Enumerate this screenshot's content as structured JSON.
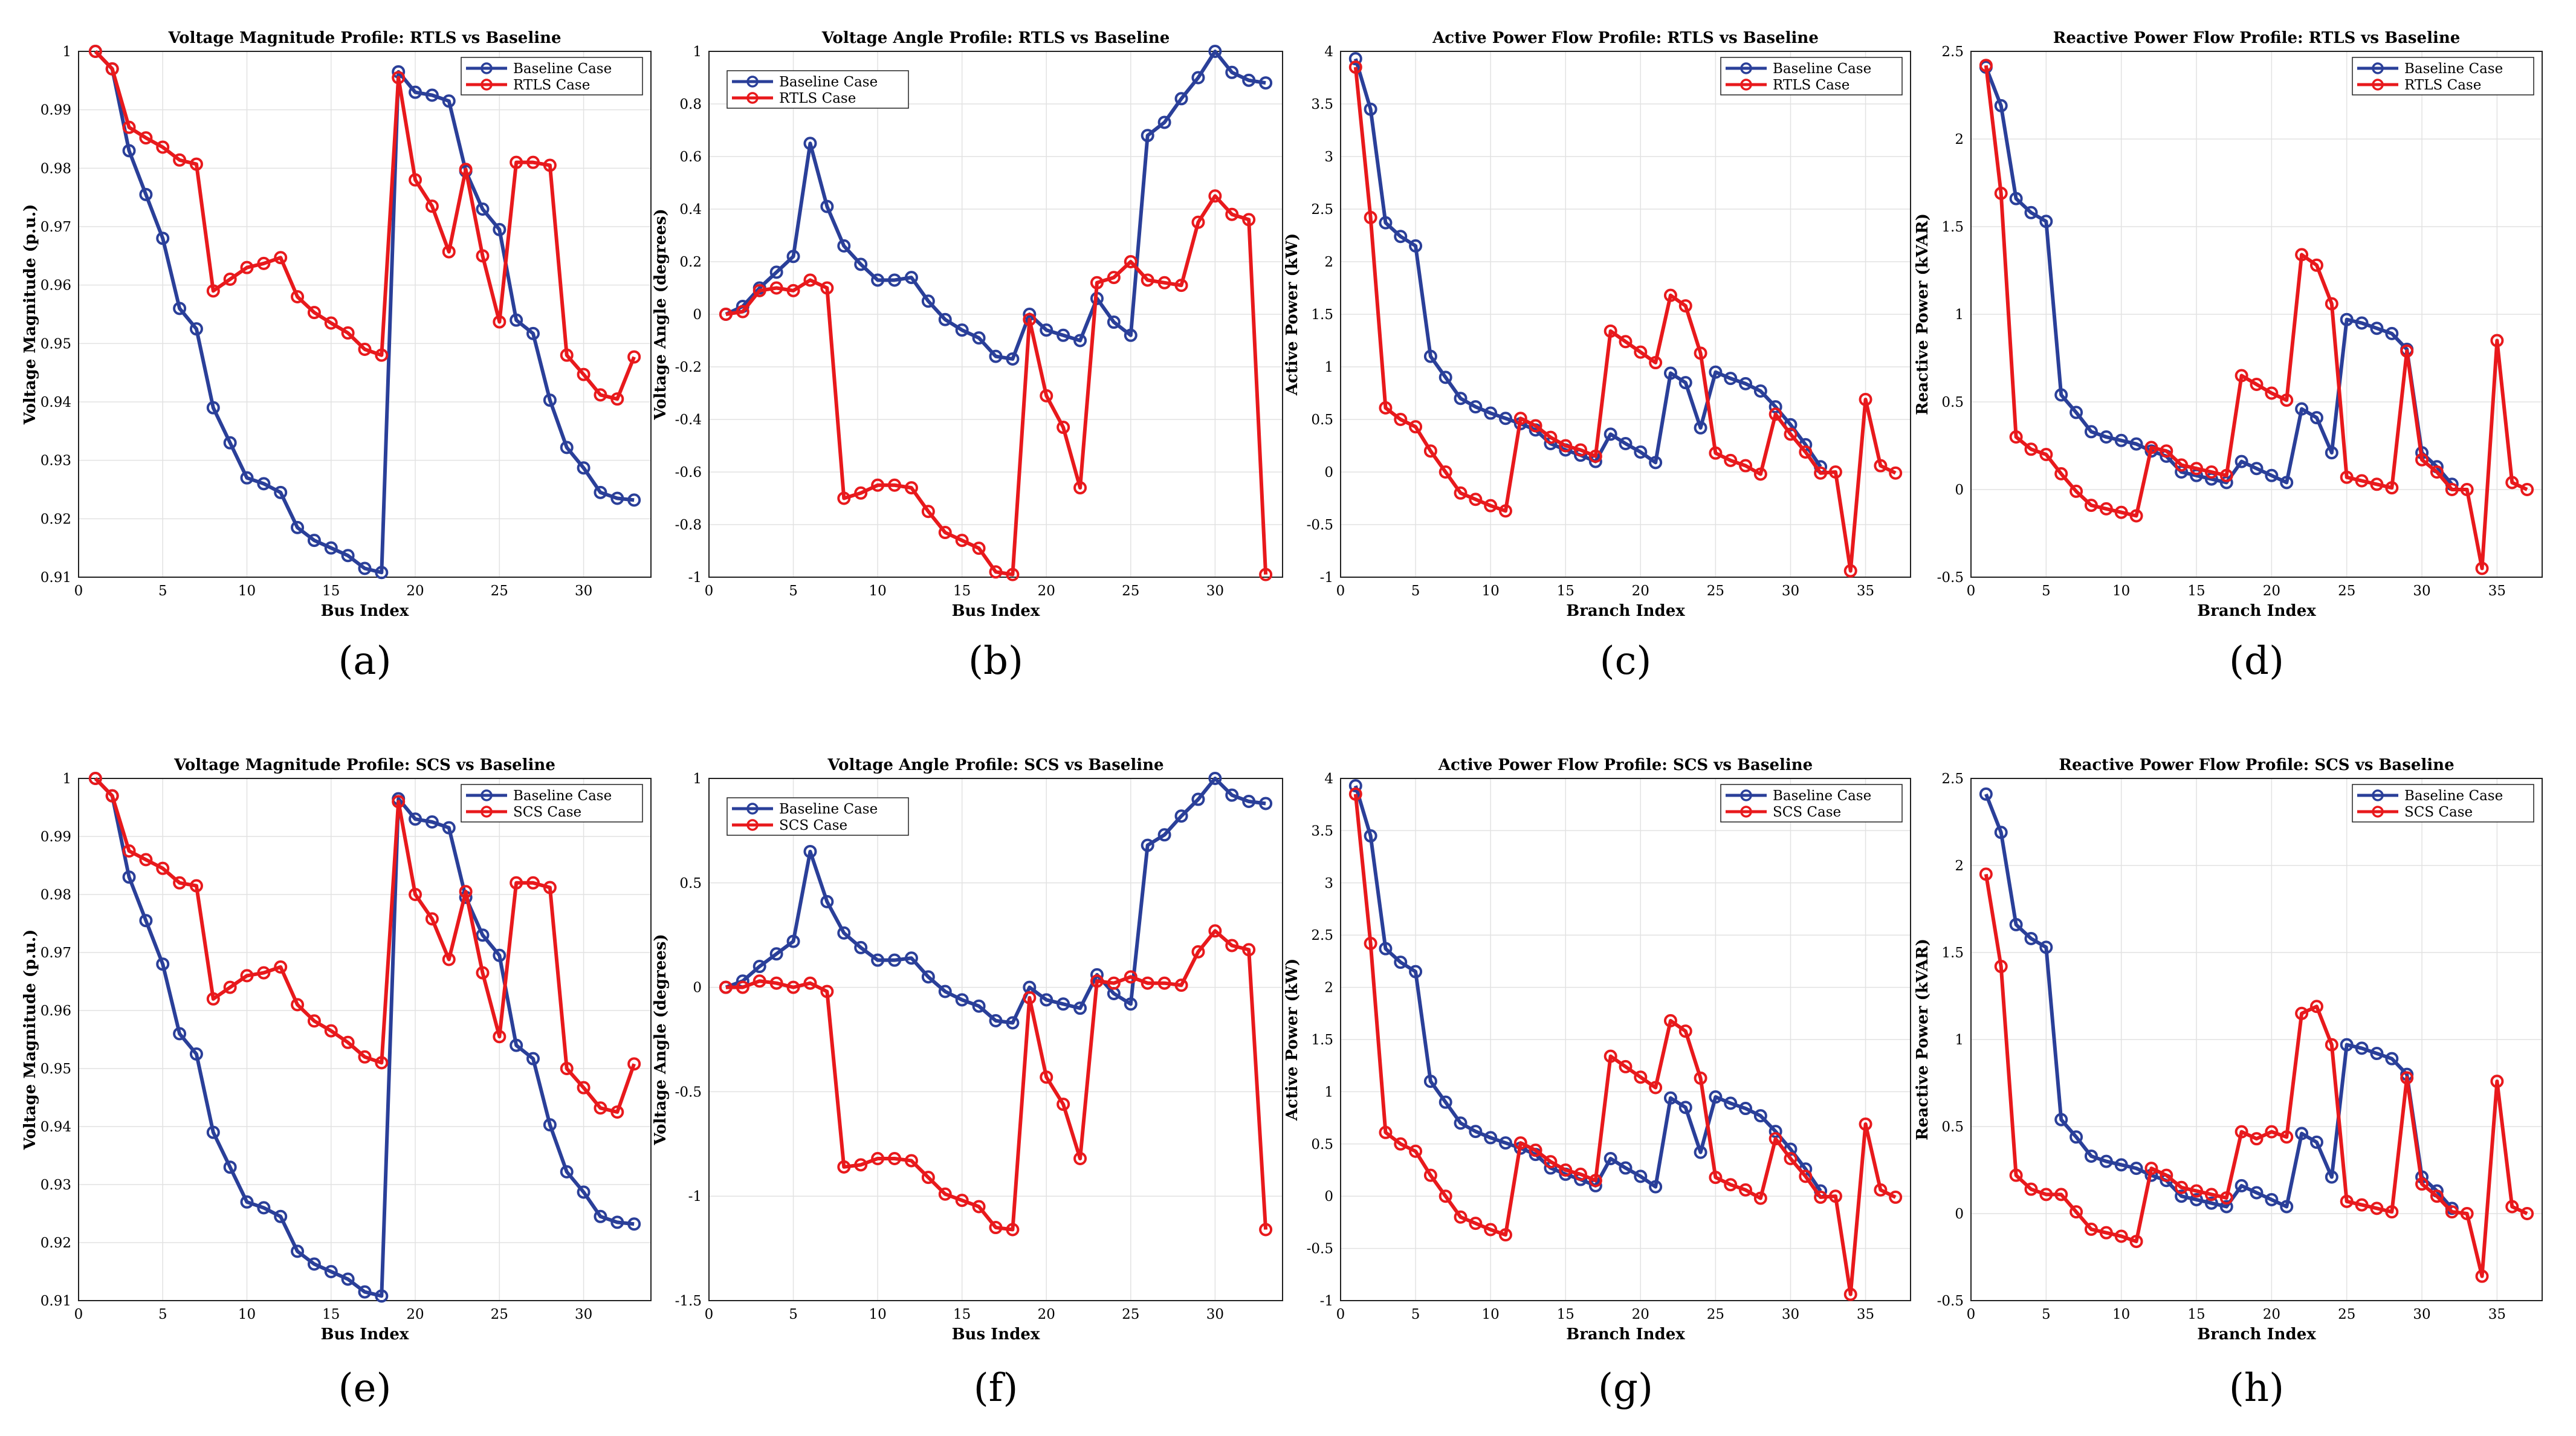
{
  "colors": {
    "baseline": "#2a3f99",
    "alt": "#e8191c"
  },
  "chart_data": [
    {
      "type": "line",
      "label": "(a)",
      "title": "Voltage Magnitude Profile: RTLS vs Baseline",
      "xlabel": "Bus Index",
      "ylabel": "Voltage Magnitude (p.u.)",
      "xlim": [
        0,
        34
      ],
      "ylim": [
        0.91,
        1
      ],
      "xticks": [
        0,
        5,
        10,
        15,
        20,
        25,
        30
      ],
      "yticks": [
        0.91,
        0.92,
        0.93,
        0.94,
        0.95,
        0.96,
        0.97,
        0.98,
        0.99,
        1
      ],
      "ytick_labels": [
        "0.91",
        "0.92",
        "0.93",
        "0.94",
        "0.95",
        "0.96",
        "0.97",
        "0.98",
        "0.99",
        "1"
      ],
      "legend": "top-right",
      "series": [
        {
          "name": "Baseline Case",
          "x_start": 1,
          "values": [
            1.0,
            0.997,
            0.983,
            0.9755,
            0.968,
            0.956,
            0.9525,
            0.939,
            0.933,
            0.927,
            0.926,
            0.9245,
            0.9185,
            0.9163,
            0.915,
            0.9137,
            0.9115,
            0.9108,
            0.9965,
            0.993,
            0.9925,
            0.9915,
            0.9795,
            0.973,
            0.9695,
            0.954,
            0.9517,
            0.9403,
            0.9322,
            0.9287,
            0.9245,
            0.9235,
            0.9232
          ]
        },
        {
          "name": "RTLS Case",
          "x_start": 1,
          "values": [
            1.0,
            0.997,
            0.987,
            0.9852,
            0.9836,
            0.9814,
            0.9807,
            0.959,
            0.961,
            0.963,
            0.9637,
            0.9647,
            0.958,
            0.9553,
            0.9535,
            0.9518,
            0.949,
            0.948,
            0.9955,
            0.978,
            0.9735,
            0.9657,
            0.9798,
            0.965,
            0.9537,
            0.981,
            0.981,
            0.9805,
            0.948,
            0.9447,
            0.9412,
            0.9405,
            0.9477
          ]
        }
      ]
    },
    {
      "type": "line",
      "label": "(b)",
      "title": "Voltage Angle Profile: RTLS vs Baseline",
      "xlabel": "Bus Index",
      "ylabel": "Voltage Angle (degrees)",
      "xlim": [
        0,
        34
      ],
      "ylim": [
        -1,
        1
      ],
      "xticks": [
        0,
        5,
        10,
        15,
        20,
        25,
        30
      ],
      "yticks": [
        -1,
        -0.8,
        -0.6,
        -0.4,
        -0.2,
        0,
        0.2,
        0.4,
        0.6,
        0.8,
        1
      ],
      "ytick_labels": [
        "-1",
        "-0.8",
        "-0.6",
        "-0.4",
        "-0.2",
        "0",
        "0.2",
        "0.4",
        "0.6",
        "0.8",
        "1"
      ],
      "legend": "top-left",
      "series": [
        {
          "name": "Baseline Case",
          "x_start": 1,
          "values": [
            0,
            0.03,
            0.1,
            0.16,
            0.22,
            0.65,
            0.41,
            0.26,
            0.19,
            0.13,
            0.13,
            0.14,
            0.05,
            -0.02,
            -0.06,
            -0.09,
            -0.16,
            -0.17,
            0.0,
            -0.06,
            -0.08,
            -0.1,
            0.06,
            -0.03,
            -0.08,
            0.68,
            0.73,
            0.82,
            0.9,
            1.0,
            0.92,
            0.89,
            0.88
          ]
        },
        {
          "name": "RTLS Case",
          "x_start": 1,
          "values": [
            0,
            0.01,
            0.09,
            0.1,
            0.09,
            0.13,
            0.1,
            -0.7,
            -0.68,
            -0.65,
            -0.65,
            -0.66,
            -0.75,
            -0.83,
            -0.86,
            -0.89,
            -0.98,
            -0.99,
            -0.02,
            -0.31,
            -0.43,
            -0.66,
            0.12,
            0.14,
            0.2,
            0.13,
            0.12,
            0.11,
            0.35,
            0.45,
            0.38,
            0.36,
            -0.99
          ]
        }
      ]
    },
    {
      "type": "line",
      "label": "(c)",
      "title": "Active Power Flow Profile: RTLS vs Baseline",
      "xlabel": "Branch Index",
      "ylabel": "Active Power (kW)",
      "xlim": [
        0,
        38
      ],
      "ylim": [
        -1,
        4
      ],
      "xticks": [
        0,
        5,
        10,
        15,
        20,
        25,
        30,
        35
      ],
      "yticks": [
        -1,
        -0.5,
        0,
        0.5,
        1,
        1.5,
        2,
        2.5,
        3,
        3.5,
        4
      ],
      "ytick_labels": [
        "-1",
        "-0.5",
        "0",
        "0.5",
        "1",
        "1.5",
        "2",
        "2.5",
        "3",
        "3.5",
        "4"
      ],
      "legend": "top-right",
      "series": [
        {
          "name": "Baseline Case",
          "x_start": 1,
          "values": [
            3.93,
            3.45,
            2.37,
            2.24,
            2.15,
            1.1,
            0.9,
            0.7,
            0.62,
            0.56,
            0.51,
            0.46,
            0.4,
            0.27,
            0.21,
            0.16,
            0.1,
            0.36,
            0.27,
            0.19,
            0.09,
            0.94,
            0.85,
            0.42,
            0.95,
            0.89,
            0.84,
            0.77,
            0.62,
            0.45,
            0.26,
            0.05
          ]
        },
        {
          "name": "RTLS Case",
          "x_start": 1,
          "values": [
            3.85,
            2.42,
            0.61,
            0.5,
            0.43,
            0.2,
            0.0,
            -0.2,
            -0.26,
            -0.32,
            -0.37,
            0.51,
            0.44,
            0.33,
            0.25,
            0.21,
            0.15,
            1.34,
            1.24,
            1.14,
            1.04,
            1.68,
            1.58,
            1.13,
            0.18,
            0.11,
            0.06,
            -0.02,
            0.55,
            0.36,
            0.19,
            -0.01,
            0.0,
            -0.94,
            0.69,
            0.06,
            -0.01
          ]
        }
      ]
    },
    {
      "type": "line",
      "label": "(d)",
      "title": "Reactive Power Flow Profile: RTLS vs Baseline",
      "xlabel": "Branch Index",
      "ylabel": "Reactive Power (kVAR)",
      "xlim": [
        0,
        38
      ],
      "ylim": [
        -0.5,
        2.5
      ],
      "xticks": [
        0,
        5,
        10,
        15,
        20,
        25,
        30,
        35
      ],
      "yticks": [
        -0.5,
        0,
        0.5,
        1,
        1.5,
        2,
        2.5
      ],
      "ytick_labels": [
        "-0.5",
        "0",
        "0.5",
        "1",
        "1.5",
        "2",
        "2.5"
      ],
      "legend": "top-right",
      "series": [
        {
          "name": "Baseline Case",
          "x_start": 1,
          "values": [
            2.41,
            2.19,
            1.66,
            1.58,
            1.53,
            0.54,
            0.44,
            0.33,
            0.3,
            0.28,
            0.26,
            0.22,
            0.19,
            0.1,
            0.08,
            0.06,
            0.04,
            0.16,
            0.12,
            0.08,
            0.04,
            0.46,
            0.41,
            0.21,
            0.97,
            0.95,
            0.92,
            0.89,
            0.8,
            0.21,
            0.13,
            0.03
          ]
        },
        {
          "name": "RTLS Case",
          "x_start": 1,
          "values": [
            2.42,
            1.69,
            0.3,
            0.23,
            0.2,
            0.09,
            -0.01,
            -0.09,
            -0.11,
            -0.13,
            -0.15,
            0.24,
            0.22,
            0.14,
            0.12,
            0.1,
            0.08,
            0.65,
            0.6,
            0.55,
            0.51,
            1.34,
            1.28,
            1.06,
            0.07,
            0.05,
            0.03,
            0.01,
            0.79,
            0.17,
            0.1,
            0.0,
            0.0,
            -0.45,
            0.85,
            0.04,
            0.0
          ]
        }
      ]
    },
    {
      "type": "line",
      "label": "(e)",
      "title": "Voltage Magnitude Profile: SCS vs Baseline",
      "xlabel": "Bus Index",
      "ylabel": "Voltage Magnitude (p.u.)",
      "xlim": [
        0,
        34
      ],
      "ylim": [
        0.91,
        1
      ],
      "xticks": [
        0,
        5,
        10,
        15,
        20,
        25,
        30
      ],
      "yticks": [
        0.91,
        0.92,
        0.93,
        0.94,
        0.95,
        0.96,
        0.97,
        0.98,
        0.99,
        1
      ],
      "ytick_labels": [
        "0.91",
        "0.92",
        "0.93",
        "0.94",
        "0.95",
        "0.96",
        "0.97",
        "0.98",
        "0.99",
        "1"
      ],
      "legend": "top-right",
      "series": [
        {
          "name": "Baseline Case",
          "x_start": 1,
          "values": [
            1.0,
            0.997,
            0.983,
            0.9755,
            0.968,
            0.956,
            0.9525,
            0.939,
            0.933,
            0.927,
            0.926,
            0.9245,
            0.9185,
            0.9163,
            0.915,
            0.9137,
            0.9115,
            0.9108,
            0.9965,
            0.993,
            0.9925,
            0.9915,
            0.9795,
            0.973,
            0.9695,
            0.954,
            0.9517,
            0.9403,
            0.9322,
            0.9287,
            0.9245,
            0.9235,
            0.9232
          ]
        },
        {
          "name": "SCS Case",
          "x_start": 1,
          "values": [
            1.0,
            0.997,
            0.9875,
            0.986,
            0.9845,
            0.982,
            0.9815,
            0.962,
            0.964,
            0.966,
            0.9665,
            0.9675,
            0.961,
            0.9582,
            0.9565,
            0.9545,
            0.952,
            0.951,
            0.996,
            0.98,
            0.9758,
            0.9688,
            0.9805,
            0.9665,
            0.9555,
            0.982,
            0.982,
            0.9812,
            0.95,
            0.9467,
            0.9432,
            0.9425,
            0.9508
          ]
        }
      ]
    },
    {
      "type": "line",
      "label": "(f)",
      "title": "Voltage Angle Profile: SCS vs Baseline",
      "xlabel": "Bus Index",
      "ylabel": "Voltage Angle (degrees)",
      "xlim": [
        0,
        34
      ],
      "ylim": [
        -1.5,
        1
      ],
      "xticks": [
        0,
        5,
        10,
        15,
        20,
        25,
        30
      ],
      "yticks": [
        -1.5,
        -1,
        -0.5,
        0,
        0.5,
        1
      ],
      "ytick_labels": [
        "-1.5",
        "-1",
        "-0.5",
        "0",
        "0.5",
        "1"
      ],
      "legend": "top-left",
      "series": [
        {
          "name": "Baseline Case",
          "x_start": 1,
          "values": [
            0,
            0.03,
            0.1,
            0.16,
            0.22,
            0.65,
            0.41,
            0.26,
            0.19,
            0.13,
            0.13,
            0.14,
            0.05,
            -0.02,
            -0.06,
            -0.09,
            -0.16,
            -0.17,
            0.0,
            -0.06,
            -0.08,
            -0.1,
            0.06,
            -0.03,
            -0.08,
            0.68,
            0.73,
            0.82,
            0.9,
            1.0,
            0.92,
            0.89,
            0.88
          ]
        },
        {
          "name": "SCS Case",
          "x_start": 1,
          "values": [
            0,
            0.0,
            0.03,
            0.02,
            0.0,
            0.02,
            -0.02,
            -0.86,
            -0.85,
            -0.82,
            -0.82,
            -0.83,
            -0.91,
            -0.99,
            -1.02,
            -1.05,
            -1.15,
            -1.16,
            -0.05,
            -0.43,
            -0.56,
            -0.82,
            0.03,
            0.02,
            0.05,
            0.02,
            0.02,
            0.01,
            0.17,
            0.27,
            0.2,
            0.18,
            -1.16
          ]
        }
      ]
    },
    {
      "type": "line",
      "label": "(g)",
      "title": "Active Power Flow Profile: SCS vs Baseline",
      "xlabel": "Branch Index",
      "ylabel": "Active Power (kW)",
      "xlim": [
        0,
        38
      ],
      "ylim": [
        -1,
        4
      ],
      "xticks": [
        0,
        5,
        10,
        15,
        20,
        25,
        30,
        35
      ],
      "yticks": [
        -1,
        -0.5,
        0,
        0.5,
        1,
        1.5,
        2,
        2.5,
        3,
        3.5,
        4
      ],
      "ytick_labels": [
        "-1",
        "-0.5",
        "0",
        "0.5",
        "1",
        "1.5",
        "2",
        "2.5",
        "3",
        "3.5",
        "4"
      ],
      "legend": "top-right",
      "series": [
        {
          "name": "Baseline Case",
          "x_start": 1,
          "values": [
            3.93,
            3.45,
            2.37,
            2.24,
            2.15,
            1.1,
            0.9,
            0.7,
            0.62,
            0.56,
            0.51,
            0.46,
            0.4,
            0.27,
            0.21,
            0.16,
            0.1,
            0.36,
            0.27,
            0.19,
            0.09,
            0.94,
            0.85,
            0.42,
            0.95,
            0.89,
            0.84,
            0.77,
            0.62,
            0.45,
            0.26,
            0.05
          ]
        },
        {
          "name": "SCS Case",
          "x_start": 1,
          "values": [
            3.85,
            2.42,
            0.61,
            0.5,
            0.43,
            0.2,
            0.0,
            -0.2,
            -0.26,
            -0.32,
            -0.37,
            0.51,
            0.44,
            0.33,
            0.25,
            0.21,
            0.15,
            1.34,
            1.24,
            1.14,
            1.04,
            1.68,
            1.58,
            1.13,
            0.18,
            0.11,
            0.06,
            -0.02,
            0.55,
            0.36,
            0.19,
            -0.01,
            0.0,
            -0.94,
            0.69,
            0.06,
            -0.01
          ]
        }
      ]
    },
    {
      "type": "line",
      "label": "(h)",
      "title": "Reactive Power Flow Profile: SCS vs Baseline",
      "xlabel": "Branch Index",
      "ylabel": "Reactive Power (kVAR)",
      "xlim": [
        0,
        38
      ],
      "ylim": [
        -0.5,
        2.5
      ],
      "xticks": [
        0,
        5,
        10,
        15,
        20,
        25,
        30,
        35
      ],
      "yticks": [
        -0.5,
        0,
        0.5,
        1,
        1.5,
        2,
        2.5
      ],
      "ytick_labels": [
        "-0.5",
        "0",
        "0.5",
        "1",
        "1.5",
        "2",
        "2.5"
      ],
      "legend": "top-right",
      "series": [
        {
          "name": "Baseline Case",
          "x_start": 1,
          "values": [
            2.41,
            2.19,
            1.66,
            1.58,
            1.53,
            0.54,
            0.44,
            0.33,
            0.3,
            0.28,
            0.26,
            0.22,
            0.19,
            0.1,
            0.08,
            0.06,
            0.04,
            0.16,
            0.12,
            0.08,
            0.04,
            0.46,
            0.41,
            0.21,
            0.97,
            0.95,
            0.92,
            0.89,
            0.8,
            0.21,
            0.13,
            0.03
          ]
        },
        {
          "name": "SCS Case",
          "x_start": 1,
          "values": [
            1.95,
            1.42,
            0.22,
            0.14,
            0.11,
            0.11,
            0.01,
            -0.09,
            -0.11,
            -0.13,
            -0.16,
            0.26,
            0.22,
            0.15,
            0.13,
            0.11,
            0.09,
            0.47,
            0.43,
            0.47,
            0.44,
            1.15,
            1.19,
            0.97,
            0.07,
            0.05,
            0.03,
            0.01,
            0.78,
            0.17,
            0.1,
            0.01,
            0.0,
            -0.36,
            0.76,
            0.04,
            0.0
          ]
        }
      ]
    }
  ]
}
